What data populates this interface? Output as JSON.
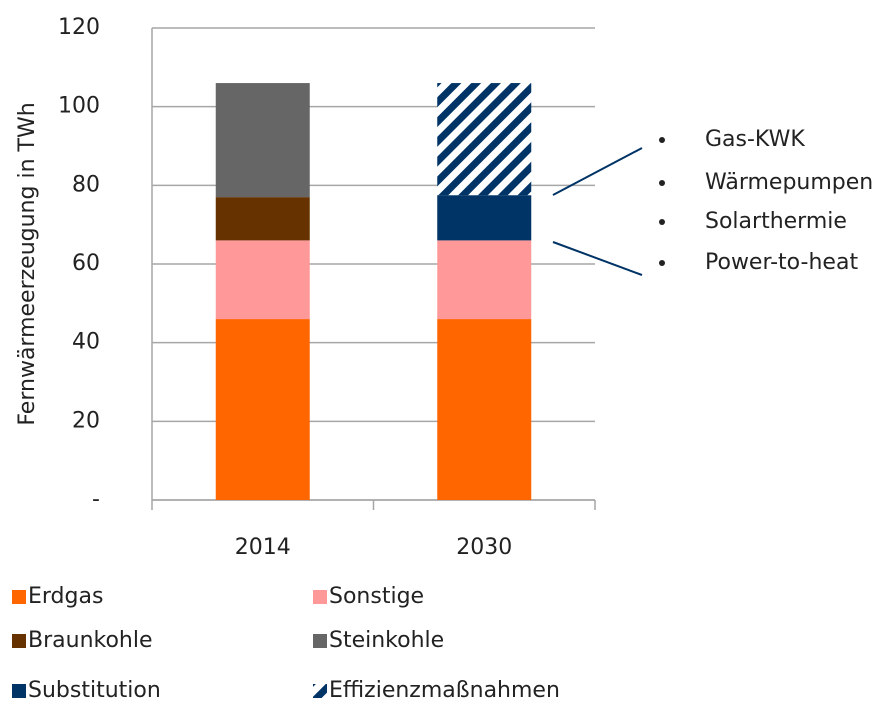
{
  "chart_data": {
    "type": "stacked_bar",
    "y_label": "Fernwärmeerzeugung in TWh",
    "categories": [
      "2014",
      "2030"
    ],
    "ylim": [
      0,
      120
    ],
    "yticks": [
      {
        "value": 0,
        "label": "-"
      },
      20,
      40,
      60,
      80,
      100,
      120
    ],
    "grid": true,
    "series": [
      {
        "name": "Erdgas",
        "color": "#ff6600",
        "values": [
          46,
          46
        ]
      },
      {
        "name": "Sonstige",
        "color": "#ff9999",
        "values": [
          20,
          20
        ]
      },
      {
        "name": "Braunkohle",
        "color": "#663300",
        "values": [
          11,
          null
        ]
      },
      {
        "name": "Steinkohle",
        "color": "#666666",
        "values": [
          29,
          null
        ]
      },
      {
        "name": "Substitution",
        "color": "#003366",
        "values": [
          null,
          11.5
        ]
      },
      {
        "name": "Effizienzmaßnahmen",
        "color": "#003366",
        "hatch": true,
        "values": [
          null,
          28.5
        ]
      }
    ],
    "annotations": [
      "Gas-KWK",
      "Wärmepumpen",
      "Solarthermie",
      "Power-to-heat"
    ]
  }
}
